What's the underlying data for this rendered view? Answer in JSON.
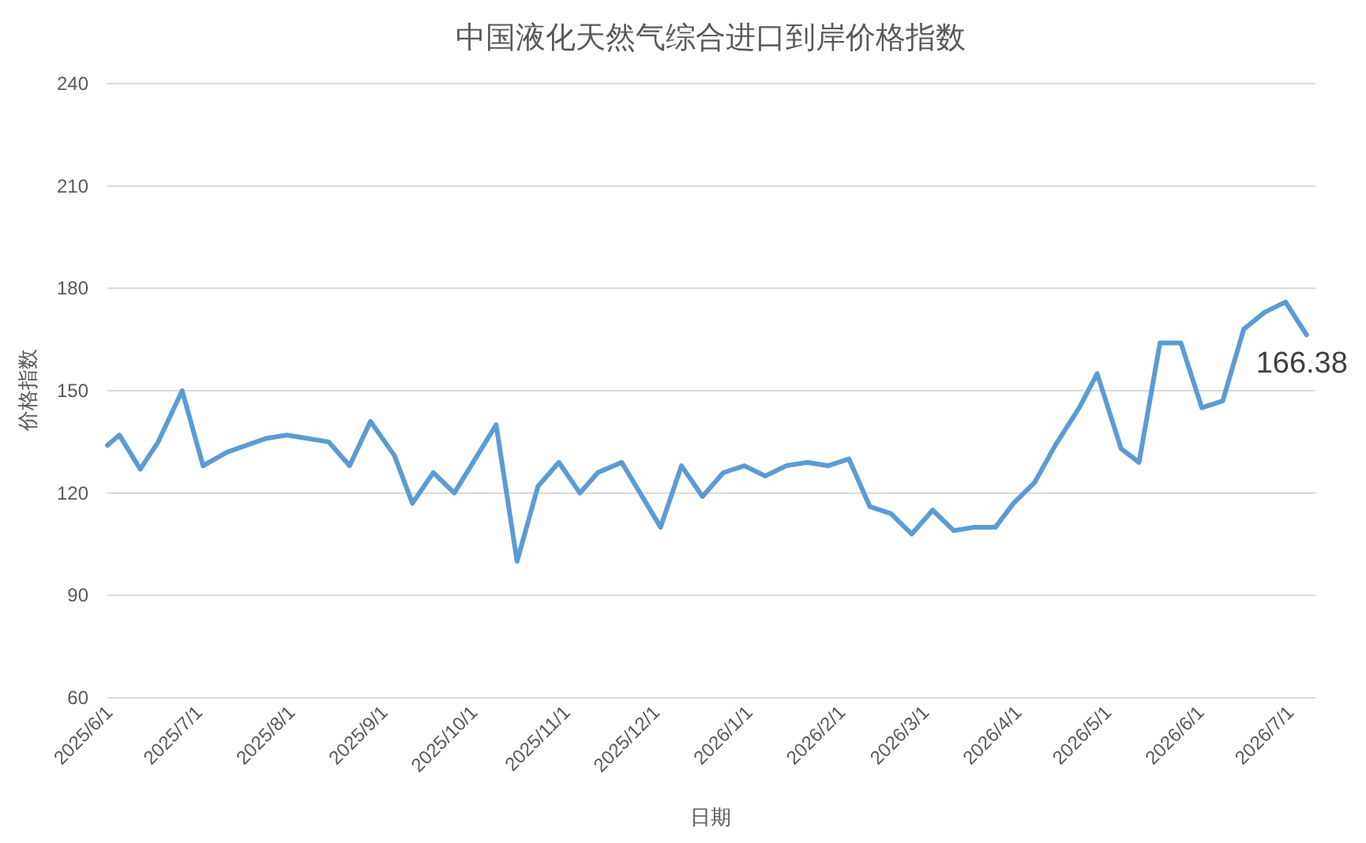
{
  "chart_data": {
    "type": "line",
    "title": "中国液化天然气综合进口到岸价格指数",
    "xlabel": "日期",
    "ylabel": "价格指数",
    "x": [
      "2025-06-01",
      "2025-06-05",
      "2025-06-12",
      "2025-06-18",
      "2025-06-26",
      "2025-07-03",
      "2025-07-11",
      "2025-07-24",
      "2025-07-31",
      "2025-08-07",
      "2025-08-14",
      "2025-08-21",
      "2025-08-28",
      "2025-09-05",
      "2025-09-11",
      "2025-09-18",
      "2025-09-25",
      "2025-10-09",
      "2025-10-16",
      "2025-10-23",
      "2025-10-30",
      "2025-11-06",
      "2025-11-12",
      "2025-11-20",
      "2025-12-03",
      "2025-12-10",
      "2025-12-17",
      "2025-12-24",
      "2025-12-31",
      "2026-01-07",
      "2026-01-14",
      "2026-01-21",
      "2026-01-28",
      "2026-02-04",
      "2026-02-11",
      "2026-02-18",
      "2026-02-25",
      "2026-03-04",
      "2026-03-11",
      "2026-03-18",
      "2026-03-25",
      "2026-03-31",
      "2026-04-07",
      "2026-04-14",
      "2026-04-22",
      "2026-04-28",
      "2026-05-06",
      "2026-05-12",
      "2026-05-19",
      "2026-05-26",
      "2026-06-02",
      "2026-06-09",
      "2026-06-16",
      "2026-06-23",
      "2026-06-30",
      "2026-07-07"
    ],
    "series": [
      {
        "color": "#5b9bd5",
        "values": [
          134,
          137,
          127,
          135,
          150,
          128,
          132,
          136,
          137,
          136,
          135,
          128,
          141,
          131,
          117,
          126,
          120,
          140,
          100,
          122,
          129,
          120,
          126,
          129,
          110,
          128,
          119,
          126,
          128,
          125,
          128,
          129,
          128,
          130,
          116,
          114,
          108,
          115,
          109,
          110,
          110,
          117,
          123,
          134,
          145,
          155,
          133,
          129,
          164,
          164,
          145,
          147,
          168,
          173,
          176,
          166.38
        ]
      }
    ],
    "xlim": [
      "2025-06-01",
      "2026-07-10"
    ],
    "xticks": [
      {
        "value": "2025-06-01",
        "label": "2025/6/1"
      },
      {
        "value": "2025-07-01",
        "label": "2025/7/1"
      },
      {
        "value": "2025-08-01",
        "label": "2025/8/1"
      },
      {
        "value": "2025-09-01",
        "label": "2025/9/1"
      },
      {
        "value": "2025-10-01",
        "label": "2025/10/1"
      },
      {
        "value": "2025-11-01",
        "label": "2025/11/1"
      },
      {
        "value": "2025-12-01",
        "label": "2025/12/1"
      },
      {
        "value": "2026-01-01",
        "label": "2026/1/1"
      },
      {
        "value": "2026-02-01",
        "label": "2026/2/1"
      },
      {
        "value": "2026-03-01",
        "label": "2026/3/1"
      },
      {
        "value": "2026-04-01",
        "label": "2026/4/1"
      },
      {
        "value": "2026-05-01",
        "label": "2026/5/1"
      },
      {
        "value": "2026-06-01",
        "label": "2026/6/1"
      },
      {
        "value": "2026-07-01",
        "label": "2026/7/1"
      }
    ],
    "ylim": [
      60,
      240
    ],
    "yticks": [
      60,
      90,
      120,
      150,
      180,
      210,
      240
    ],
    "grid": "y",
    "line_style": "solid",
    "marker": "none",
    "annotations": [
      {
        "text": "166.38",
        "x": "2026-07-07",
        "y": 166.38
      }
    ]
  }
}
